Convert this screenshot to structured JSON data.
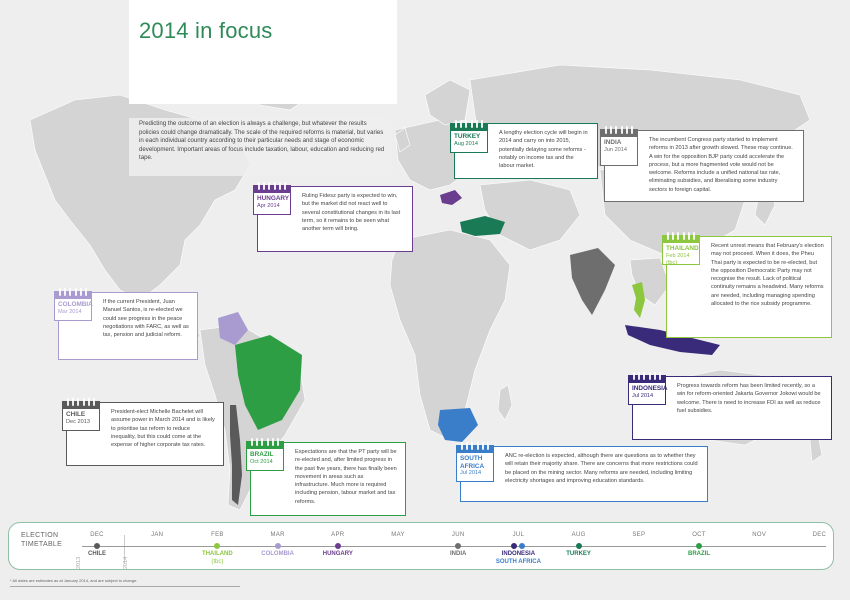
{
  "title": "2014 in focus",
  "intro": "Predicting the outcome of an election is always a challenge, but whatever the results policies could change dramatically. The scale of the required reforms is material, but varies in each individual country according to their particular needs and stage of economic development. Important areas of focus include taxation, labour, education and reducing red tape.",
  "countries": [
    {
      "key": "turkey",
      "name": "TURKEY",
      "date": "Aug 2014",
      "color": "#1a7a55",
      "text": "A lengthy election cycle will begin in 2014 and carry on into 2015, potentially delaying some reforms - notably on income tax and the labour market."
    },
    {
      "key": "india",
      "name": "INDIA",
      "date": "Jun 2014",
      "color": "#6e6e6e",
      "text": "The incumbent Congress party started to implement reforms in 2013 after growth slowed. These may continue. A win for the opposition BJP party could accelerate the process, but a more fragmented vote would not be welcome. Reforms include a unified national tax rate, eliminating subsidies, and liberalising some industry sectors to foreign capital."
    },
    {
      "key": "hungary",
      "name": "HUNGARY",
      "date": "Apr 2014",
      "color": "#6a3d8f",
      "text": "Ruling Fidesz party is expected to win, but the market did not react well to several constitutional changes in its last term, so it remains to be seen what another term will bring."
    },
    {
      "key": "thailand",
      "name": "THAILAND",
      "date": "Feb 2014",
      "date2": "(tbc)",
      "color": "#8dc63f",
      "text": "Recent unrest means that February's election may not proceed. When it does, the Pheu Thai party is expected to be re-elected, but the opposition Democratic Party may not recognise the result. Lack of political continuity remains a headwind. Many reforms are needed, including managing spending allocated to the rice subsidy programme."
    },
    {
      "key": "colombia",
      "name": "COLOMBIA",
      "date": "Mar 2014",
      "color": "#a99bd0",
      "text": "If the current President, Juan Manuel Santos, is re-elected we could see progress in the peace negotiations with FARC, as well as tax, pension and judicial reform."
    },
    {
      "key": "chile",
      "name": "CHILE",
      "date": "Dec 2013",
      "color": "#5a5a5a",
      "text": "President-elect Michelle Bachelet will assume power in March 2014 and is likely to prioritise tax reform to reduce inequality, but this could come at the expense of higher corporate tax rates."
    },
    {
      "key": "brazil",
      "name": "BRAZIL",
      "date": "Oct 2014",
      "color": "#2e9e45",
      "text": "Expectations are that the PT party will be re-elected and, after limited progress in the past five years, there has finally been movement in areas such as infrastructure. Much more is required including pension, labour market and tax reforms."
    },
    {
      "key": "south_africa",
      "name": "SOUTH AFRICA",
      "date": "Jul 2014",
      "color": "#3a7dc9",
      "text": "ANC re-election is expected, although there are questions as to whether they will retain their majority share. There are concerns that more restrictions could be placed on the mining sector. Many reforms are needed, including limiting electricity shortages and improving education standards."
    },
    {
      "key": "indonesia",
      "name": "INDONESIA",
      "date": "Jul 2014",
      "color": "#3a2a7a",
      "text": "Progress towards reform has been limited recently, so a win for reform-oriented Jakarta Governor Jokowi would be welcome. There is need to increase FDI as well as reduce fuel subsidies."
    }
  ],
  "timeline": {
    "title_line1": "ELECTION",
    "title_line2": "TIMETABLE",
    "year_2013": "2013",
    "year_2014": "2014",
    "months": [
      "DEC",
      "JAN",
      "FEB",
      "MAR",
      "APR",
      "MAY",
      "JUN",
      "JUL",
      "AUG",
      "SEP",
      "OCT",
      "NOV",
      "DEC"
    ],
    "events": [
      {
        "month": 0,
        "label": "CHILE",
        "color": "#5a5a5a"
      },
      {
        "month": 2,
        "label": "THAILAND",
        "label2": "(tbc)",
        "color": "#8dc63f"
      },
      {
        "month": 3,
        "label": "COLOMBIA",
        "color": "#a99bd0"
      },
      {
        "month": 4,
        "label": "HUNGARY",
        "color": "#6a3d8f"
      },
      {
        "month": 6,
        "label": "INDIA",
        "color": "#6e6e6e"
      },
      {
        "month": 7,
        "label": "INDONESIA",
        "label2": "SOUTH AFRICA",
        "color": "#3a2a7a",
        "color2": "#3a7dc9"
      },
      {
        "month": 8,
        "label": "TURKEY",
        "color": "#1a7a55"
      },
      {
        "month": 10,
        "label": "BRAZIL",
        "color": "#2e9e45"
      }
    ]
  },
  "footnote": "* All dates are estimates as at January 2014, and are subject to change."
}
